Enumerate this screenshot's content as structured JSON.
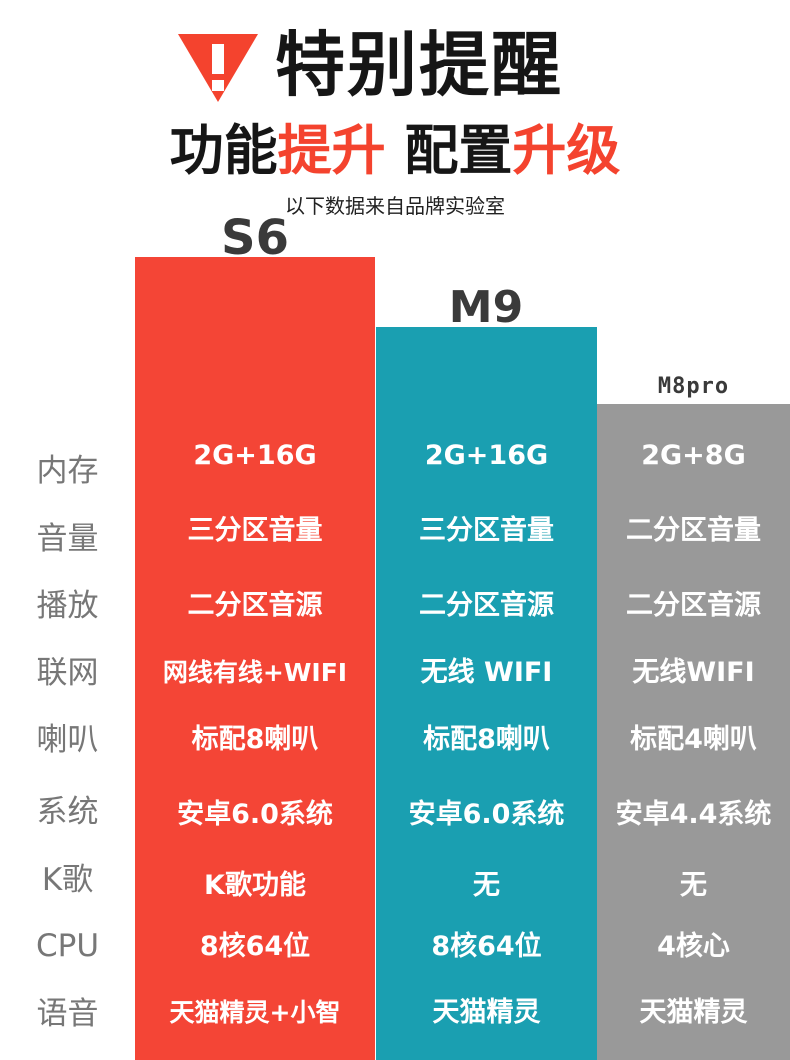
{
  "header": {
    "title": "特别提醒",
    "subtitle_parts": [
      "功能",
      "提升",
      " 配置",
      "升级"
    ],
    "source_note": "以下数据来自品牌实验室"
  },
  "colors": {
    "accent_red": "#f44536",
    "accent_teal": "#1a9fb1",
    "accent_gray": "#999999",
    "label_gray": "#777777"
  },
  "icons": [
    "warning-icon"
  ],
  "columns": [
    {
      "name": "S6"
    },
    {
      "name": "M9"
    },
    {
      "name": "M8pro"
    }
  ],
  "row_labels": [
    "内存",
    "音量",
    "播放",
    "联网",
    "喇叭",
    "系统",
    "K歌",
    "CPU",
    "语音"
  ],
  "values": {
    "s6": [
      "2G+16G",
      "三分区音量",
      "二分区音源",
      "网线有线+WIFI",
      "标配8喇叭",
      "安卓6.0系统",
      "K歌功能",
      "8核64位",
      "天猫精灵+小智"
    ],
    "m9": [
      "2G+16G",
      "三分区音量",
      "二分区音源",
      "无线 WIFI",
      "标配8喇叭",
      "安卓6.0系统",
      "无",
      "8核64位",
      "天猫精灵"
    ],
    "m8pro": [
      "2G+8G",
      "二分区音量",
      "二分区音源",
      "无线WIFI",
      "标配4喇叭",
      "安卓4.4系统",
      "无",
      "4核心",
      "天猫精灵"
    ]
  }
}
